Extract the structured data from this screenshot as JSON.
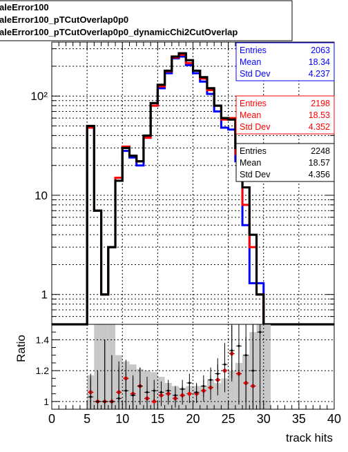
{
  "legend_box": {
    "lines": [
      "aleError100",
      "aleError100_pTCutOverlap0p0",
      "aleError100_pTCutOverlap0p0_dynamicChi2CutOverlap"
    ]
  },
  "colors": {
    "blue": "#0000ff",
    "red": "#ff0000",
    "black": "#000000",
    "band": "#c8c8c8"
  },
  "chart_data": [
    {
      "type": "step-histogram",
      "title": "",
      "xlabel": "",
      "ylabel": "",
      "log_y": true,
      "grid": true,
      "xlim": [
        0,
        40
      ],
      "ylim": [
        0.5,
        350
      ],
      "y_tick_labels": [
        "1",
        "10",
        "10²"
      ],
      "bin_edges": [
        0,
        1,
        2,
        3,
        4,
        5,
        6,
        7,
        8,
        9,
        10,
        11,
        12,
        13,
        14,
        15,
        16,
        17,
        18,
        19,
        20,
        21,
        22,
        23,
        24,
        25,
        26,
        27,
        28,
        29,
        30,
        31,
        32,
        33,
        34,
        35,
        36,
        37,
        38,
        39,
        40
      ],
      "series": [
        {
          "name": "aleError100",
          "color": "blue",
          "values": [
            0,
            0,
            0,
            0,
            0,
            48,
            7,
            1,
            3,
            14,
            28,
            24,
            20,
            38,
            80,
            120,
            170,
            240,
            250,
            205,
            170,
            140,
            105,
            70,
            48,
            46,
            22,
            5,
            1.3,
            1.3,
            0.5,
            0,
            0,
            0,
            0,
            0,
            0,
            0,
            0,
            0
          ]
        },
        {
          "name": "aleError100_pTCutOverlap0p0",
          "color": "red",
          "values": [
            0,
            0,
            0,
            0,
            0,
            48,
            7,
            1,
            3,
            15,
            31,
            25,
            22,
            38,
            80,
            125,
            178,
            245,
            260,
            215,
            180,
            150,
            115,
            80,
            58,
            60,
            26,
            8,
            3,
            1,
            0.5,
            0,
            0,
            0,
            0,
            0,
            0,
            0,
            0,
            0
          ]
        },
        {
          "name": "aleError100_pTCutOverlap0p0_dynamicChi2CutOverlap",
          "color": "black",
          "values": [
            0,
            0,
            0,
            0,
            0,
            50,
            7,
            1,
            3,
            14,
            30,
            25,
            22,
            40,
            85,
            130,
            180,
            250,
            270,
            230,
            180,
            155,
            120,
            80,
            60,
            58,
            30,
            12,
            4,
            1,
            0.5,
            0,
            0,
            0,
            0,
            0,
            0,
            0,
            0,
            0
          ]
        }
      ],
      "stats_boxes": [
        {
          "color": "blue",
          "rows": [
            {
              "label": "Entries",
              "value": "2063"
            },
            {
              "label": "Mean",
              "value": "18.34"
            },
            {
              "label": "Std Dev",
              "value": "4.237"
            }
          ]
        },
        {
          "color": "red",
          "rows": [
            {
              "label": "Entries",
              "value": "2198"
            },
            {
              "label": "Mean",
              "value": "18.53"
            },
            {
              "label": "Std Dev",
              "value": "4.352"
            }
          ]
        },
        {
          "color": "black",
          "rows": [
            {
              "label": "Entries",
              "value": "2248"
            },
            {
              "label": "Mean",
              "value": "18.57"
            },
            {
              "label": "Std Dev",
              "value": "4.356"
            }
          ]
        }
      ]
    },
    {
      "type": "scatter-ratio",
      "title": "",
      "xlabel": "track hits",
      "ylabel": "Ratio",
      "grid": true,
      "xlim": [
        0,
        40
      ],
      "ylim": [
        0.95,
        1.5
      ],
      "x_tick_labels": [
        "0",
        "5",
        "10",
        "15",
        "20",
        "25",
        "30",
        "35",
        "40"
      ],
      "y_tick_labels": [
        "1",
        "1.2",
        "1.4"
      ],
      "band": {
        "bin_edges": [
          5,
          6,
          7,
          8,
          9,
          10,
          11,
          12,
          13,
          14,
          15,
          16,
          17,
          18,
          19,
          20,
          21,
          22,
          23,
          24,
          25,
          26,
          27,
          28,
          29,
          30,
          31
        ],
        "upper": [
          1.17,
          1.5,
          1.5,
          1.5,
          1.3,
          1.26,
          1.24,
          1.21,
          1.2,
          1.19,
          1.16,
          1.12,
          1.1,
          1.09,
          1.1,
          1.1,
          1.1,
          1.14,
          1.12,
          1.15,
          1.2,
          1.25,
          1.3,
          1.45,
          1.5,
          1.5
        ]
      },
      "series": [
        {
          "name": "aleError100_pTCutOverlap0p0",
          "color": "red",
          "points": [
            {
              "x": 5.5,
              "y": 1.06,
              "err": 0.12
            },
            {
              "x": 6.5,
              "y": 1.0,
              "err": 0.2
            },
            {
              "x": 7.5,
              "y": 1.0,
              "err": 0.4
            },
            {
              "x": 8.5,
              "y": 1.0,
              "err": 0.3
            },
            {
              "x": 9.5,
              "y": 1.06,
              "err": 0.2
            },
            {
              "x": 10.5,
              "y": 1.15,
              "err": 0.12
            },
            {
              "x": 11.5,
              "y": 1.05,
              "err": 0.12
            },
            {
              "x": 12.5,
              "y": 1.1,
              "err": 0.12
            },
            {
              "x": 13.5,
              "y": 1.02,
              "err": 0.1
            },
            {
              "x": 14.5,
              "y": 1.0,
              "err": 0.07
            },
            {
              "x": 15.5,
              "y": 1.04,
              "err": 0.07
            },
            {
              "x": 16.5,
              "y": 1.05,
              "err": 0.07
            },
            {
              "x": 17.5,
              "y": 1.02,
              "err": 0.06
            },
            {
              "x": 18.5,
              "y": 1.04,
              "err": 0.06
            },
            {
              "x": 19.5,
              "y": 1.05,
              "err": 0.06
            },
            {
              "x": 20.5,
              "y": 1.05,
              "err": 0.06
            },
            {
              "x": 21.5,
              "y": 1.07,
              "err": 0.07
            },
            {
              "x": 22.5,
              "y": 1.09,
              "err": 0.08
            },
            {
              "x": 23.5,
              "y": 1.14,
              "err": 0.1
            },
            {
              "x": 24.5,
              "y": 1.2,
              "err": 0.14
            },
            {
              "x": 25.5,
              "y": 1.31,
              "err": 0.18
            },
            {
              "x": 26.5,
              "y": 1.18,
              "err": 0.2
            },
            {
              "x": 27.5,
              "y": 1.12,
              "err": 0.3
            },
            {
              "x": 28.5,
              "y": 1.1,
              "err": 0.4
            }
          ]
        },
        {
          "name": "aleError100_pTCutOverlap0p0_dynamicChi2CutOverlap",
          "color": "black",
          "points": [
            {
              "x": 5.5,
              "y": 1.03,
              "err": 0.12
            },
            {
              "x": 6.5,
              "y": 1.0,
              "err": 0.2
            },
            {
              "x": 7.5,
              "y": 1.0,
              "err": 0.4
            },
            {
              "x": 8.5,
              "y": 1.0,
              "err": 0.3
            },
            {
              "x": 9.5,
              "y": 1.02,
              "err": 0.2
            },
            {
              "x": 10.5,
              "y": 1.07,
              "err": 0.12
            },
            {
              "x": 11.5,
              "y": 1.04,
              "err": 0.12
            },
            {
              "x": 12.5,
              "y": 1.1,
              "err": 0.12
            },
            {
              "x": 13.5,
              "y": 1.06,
              "err": 0.1
            },
            {
              "x": 14.5,
              "y": 1.07,
              "err": 0.07
            },
            {
              "x": 15.5,
              "y": 1.06,
              "err": 0.07
            },
            {
              "x": 16.5,
              "y": 1.07,
              "err": 0.07
            },
            {
              "x": 17.5,
              "y": 1.04,
              "err": 0.06
            },
            {
              "x": 18.5,
              "y": 1.08,
              "err": 0.06
            },
            {
              "x": 19.5,
              "y": 1.12,
              "err": 0.06
            },
            {
              "x": 20.5,
              "y": 1.06,
              "err": 0.06
            },
            {
              "x": 21.5,
              "y": 1.1,
              "err": 0.07
            },
            {
              "x": 22.5,
              "y": 1.14,
              "err": 0.08
            },
            {
              "x": 23.5,
              "y": 1.18,
              "err": 0.1
            },
            {
              "x": 24.5,
              "y": 1.24,
              "err": 0.14
            },
            {
              "x": 25.5,
              "y": 1.33,
              "err": 0.18
            },
            {
              "x": 26.5,
              "y": 1.36,
              "err": 0.2
            },
            {
              "x": 27.5,
              "y": 1.3,
              "err": 0.3
            },
            {
              "x": 28.5,
              "y": 1.2,
              "err": 0.4
            },
            {
              "x": 29.5,
              "y": 1.45,
              "err": 0.5
            }
          ]
        }
      ]
    }
  ]
}
